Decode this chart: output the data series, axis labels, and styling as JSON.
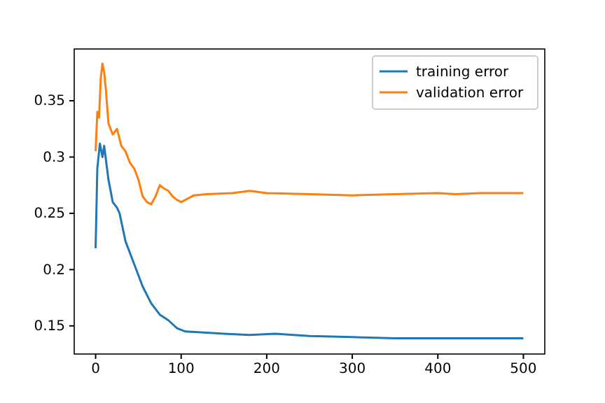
{
  "chart_data": {
    "type": "line",
    "xlim": [
      -25,
      525
    ],
    "ylim": [
      0.125,
      0.396
    ],
    "xticks": [
      0,
      100,
      200,
      300,
      400,
      500
    ],
    "yticks": [
      0.15,
      0.2,
      0.25,
      0.3,
      0.35
    ],
    "legend": "top right",
    "grid": false,
    "series": [
      {
        "name": "training error",
        "color": "#1f77b4",
        "x": [
          0,
          2,
          5,
          8,
          10,
          15,
          20,
          25,
          28,
          35,
          45,
          55,
          65,
          75,
          85,
          95,
          105,
          130,
          150,
          180,
          210,
          250,
          300,
          350,
          400,
          500
        ],
        "values": [
          0.219,
          0.29,
          0.312,
          0.3,
          0.31,
          0.28,
          0.26,
          0.255,
          0.25,
          0.225,
          0.205,
          0.185,
          0.17,
          0.16,
          0.155,
          0.148,
          0.145,
          0.144,
          0.143,
          0.142,
          0.143,
          0.141,
          0.14,
          0.139,
          0.139,
          0.139
        ]
      },
      {
        "name": "validation error",
        "color": "#ff7f0e",
        "x": [
          0,
          2,
          4,
          6,
          8,
          10,
          12,
          15,
          20,
          25,
          30,
          35,
          40,
          45,
          50,
          55,
          60,
          65,
          70,
          75,
          80,
          85,
          90,
          95,
          100,
          105,
          115,
          130,
          160,
          180,
          200,
          250,
          300,
          350,
          400,
          420,
          450,
          500
        ],
        "values": [
          0.305,
          0.34,
          0.335,
          0.37,
          0.383,
          0.375,
          0.36,
          0.33,
          0.32,
          0.325,
          0.31,
          0.305,
          0.295,
          0.29,
          0.28,
          0.265,
          0.26,
          0.258,
          0.265,
          0.275,
          0.272,
          0.27,
          0.265,
          0.262,
          0.26,
          0.262,
          0.266,
          0.267,
          0.268,
          0.27,
          0.268,
          0.267,
          0.266,
          0.267,
          0.268,
          0.267,
          0.268,
          0.268
        ]
      }
    ]
  }
}
